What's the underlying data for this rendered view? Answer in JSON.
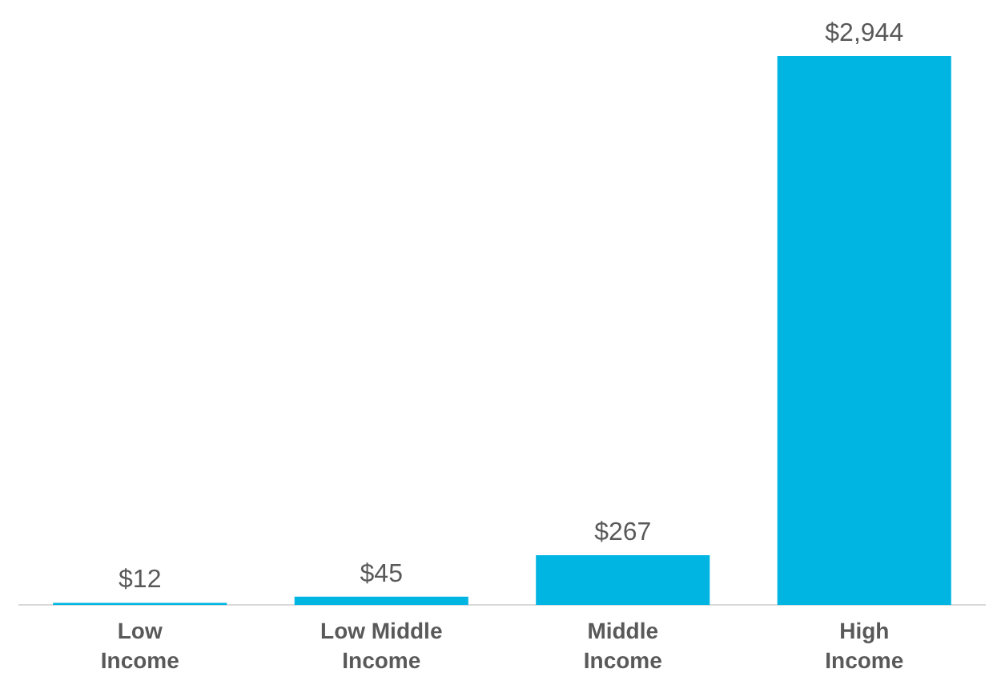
{
  "chart_data": {
    "type": "bar",
    "categories": [
      "Low Income",
      "Low Middle Income",
      "Middle Income",
      "High Income"
    ],
    "values": [
      12,
      45,
      267,
      2944
    ],
    "value_labels": [
      "$12",
      "$45",
      "$267",
      "$2,944"
    ],
    "color": "#00b5e2",
    "grid": false,
    "legend": false,
    "tick_labels": "x"
  }
}
